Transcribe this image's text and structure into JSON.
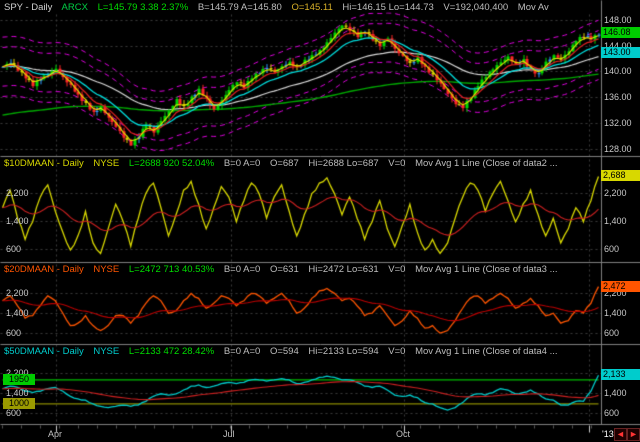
{
  "colors": {
    "background": "#000000",
    "grid": "#3a3a3a",
    "separator": "#808080",
    "axis_text": "#c8c8c8"
  },
  "panels": [
    {
      "id": "spy",
      "line_color": "#00d800",
      "header": {
        "symbol": "SPY - Daily",
        "exchange": "ARCX",
        "last": "L=145.79 3.38 2.37%",
        "bid_ask": "B=145.79 A=145.80",
        "open": "O=145.11",
        "hi_lo": "Hi=146.15 Lo=144.73",
        "volume": "V=192,040,400",
        "indicator": "Mov Av"
      },
      "right_axis_labels": [
        {
          "text": "148.00",
          "value": 148
        },
        {
          "text": "144.00",
          "value": 144
        },
        {
          "text": "140.00",
          "value": 140
        },
        {
          "text": "136.00",
          "value": 136
        },
        {
          "text": "132.00",
          "value": 132
        },
        {
          "text": "128.00",
          "value": 128
        }
      ],
      "axis_labels": [],
      "badges": [
        {
          "text": "146.08",
          "value": 146.08,
          "bg": "#00cc00",
          "fg": "#000000",
          "side": "right"
        },
        {
          "text": "143.00",
          "value": 143.0,
          "bg": "#00cccc",
          "fg": "#000000",
          "side": "right"
        }
      ]
    },
    {
      "id": "10dmaan",
      "line_color": "#d8d800",
      "header": {
        "symbol": "$10DMAAN - Daily",
        "exchange": "NYSE",
        "last": "L=2688 920 52.04%",
        "bid_ask": "B=0 A=0",
        "open": "O=687",
        "hi_lo": "Hi=2688 Lo=687",
        "volume": "V=0",
        "indicator": "Mov Avg 1 Line (Close of data2 ..."
      },
      "right_axis_labels": [
        {
          "text": "2,200",
          "value": 2200
        },
        {
          "text": "1,400",
          "value": 1400
        },
        {
          "text": "600",
          "value": 600
        }
      ],
      "axis_labels": [
        {
          "text": "2,200",
          "value": 2200
        },
        {
          "text": "1,400",
          "value": 1400
        },
        {
          "text": "600",
          "value": 600
        }
      ],
      "badges": [
        {
          "text": "2,688",
          "value": 2688,
          "bg": "#d8d800",
          "fg": "#000000",
          "side": "right"
        }
      ]
    },
    {
      "id": "20dmaan",
      "line_color": "#ff5500",
      "header": {
        "symbol": "$20DMAAN - Daily",
        "exchange": "NYSE",
        "last": "L=2472 713 40.53%",
        "bid_ask": "B=0 A=0",
        "open": "O=631",
        "hi_lo": "Hi=2472 Lo=631",
        "volume": "V=0",
        "indicator": "Mov Avg 1 Line (Close of data3 ..."
      },
      "right_axis_labels": [
        {
          "text": "2,200",
          "value": 2200
        },
        {
          "text": "1,400",
          "value": 1400
        },
        {
          "text": "600",
          "value": 600
        }
      ],
      "axis_labels": [
        {
          "text": "2,200",
          "value": 2200
        },
        {
          "text": "1,400",
          "value": 1400
        },
        {
          "text": "600",
          "value": 600
        }
      ],
      "badges": [
        {
          "text": "2,472",
          "value": 2472,
          "bg": "#ff5500",
          "fg": "#000000",
          "side": "right"
        }
      ]
    },
    {
      "id": "50dmaan",
      "line_color": "#00cccc",
      "header": {
        "symbol": "$50DMAAN - Daily",
        "exchange": "NYSE",
        "last": "L=2133 472 28.42%",
        "bid_ask": "B=0 A=0",
        "open": "O=594",
        "hi_lo": "Hi=2133 Lo=594",
        "volume": "V=0",
        "indicator": "Mov Avg 1 Line (Close of data4 ..."
      },
      "right_axis_labels": [
        {
          "text": "2,200",
          "value": 2200
        },
        {
          "text": "1,400",
          "value": 1400
        },
        {
          "text": "600",
          "value": 600
        }
      ],
      "axis_labels": [
        {
          "text": "2,200",
          "value": 2200
        },
        {
          "text": "1,400",
          "value": 1400
        },
        {
          "text": "600",
          "value": 600
        }
      ],
      "badges": [
        {
          "text": "2,133",
          "value": 2133,
          "bg": "#00cccc",
          "fg": "#000000",
          "side": "right"
        },
        {
          "text": "1950",
          "value": 1950,
          "bg": "#00cc00",
          "fg": "#000000",
          "side": "left"
        },
        {
          "text": "1000",
          "value": 1000,
          "bg": "#9a9a00",
          "fg": "#000000",
          "side": "left"
        }
      ]
    }
  ],
  "date_axis": {
    "labels": [
      "Apr",
      "Jul",
      "Oct",
      "'13"
    ],
    "fractions": [
      0.09,
      0.385,
      0.675,
      0.985
    ]
  },
  "scrollbar": {
    "left_arrow": "◄",
    "right_arrow": "►"
  },
  "chart_data": [
    {
      "type": "candlestick",
      "title": "SPY - Daily",
      "ylim": [
        127.2,
        148.6
      ],
      "y_ticks": [
        128,
        132,
        136,
        140,
        144,
        148
      ],
      "x_labels": [
        "Apr",
        "Jul",
        "Oct",
        "'13"
      ],
      "last": 145.79,
      "open": 145.11,
      "high": 146.15,
      "low": 144.73,
      "volume": "192,040,400",
      "close": [
        140.8,
        141.4,
        140.2,
        139.0,
        137.8,
        138.9,
        139.6,
        140.5,
        139.2,
        138.0,
        136.5,
        135.2,
        133.8,
        134.6,
        132.9,
        131.5,
        129.8,
        128.6,
        129.9,
        131.8,
        130.6,
        132.4,
        133.9,
        135.8,
        134.7,
        136.2,
        137.4,
        135.9,
        134.2,
        135.6,
        137.2,
        138.4,
        137.5,
        139.0,
        139.8,
        140.6,
        139.9,
        140.9,
        141.6,
        140.8,
        141.9,
        142.6,
        143.4,
        144.6,
        146.1,
        147.2,
        146.4,
        145.4,
        146.2,
        144.9,
        144.0,
        145.2,
        143.6,
        142.5,
        141.4,
        142.3,
        140.8,
        139.6,
        138.2,
        136.6,
        135.0,
        134.4,
        136.0,
        137.8,
        139.2,
        140.4,
        141.5,
        142.4,
        141.2,
        142.0,
        140.4,
        139.8,
        141.6,
        142.6,
        141.9,
        143.2,
        144.8,
        145.4,
        145.0,
        145.79
      ],
      "overlays": [
        {
          "name": "mov-avg-fast",
          "color": "#e6e600"
        },
        {
          "name": "mov-avg-medium",
          "color": "#e02020"
        },
        {
          "name": "mov-avg-20",
          "color": "#00dede"
        },
        {
          "name": "mov-avg-50",
          "color": "#d8d8d8"
        },
        {
          "name": "mov-avg-200",
          "color": "#00a800"
        },
        {
          "name": "envelope-bands",
          "color": "#e000e0",
          "style": "dashed"
        }
      ]
    },
    {
      "type": "line",
      "title": "$10DMAAN - Daily",
      "ylim": [
        300,
        2800
      ],
      "y_ticks": [
        600,
        1400,
        2200
      ],
      "line_color": "#d8d800",
      "ma_color": "#cc2020",
      "last": 2688,
      "values": [
        1800,
        2300,
        1500,
        900,
        1400,
        2100,
        2450,
        1700,
        1100,
        600,
        1000,
        1700,
        800,
        500,
        1200,
        1900,
        1400,
        700,
        1500,
        2200,
        2500,
        1800,
        1000,
        1600,
        2300,
        2550,
        1900,
        1200,
        1800,
        2400,
        2100,
        1400,
        2000,
        2500,
        2200,
        1500,
        2100,
        2450,
        1700,
        1000,
        1600,
        2200,
        2500,
        2650,
        2200,
        1600,
        2100,
        1500,
        900,
        1400,
        2000,
        1200,
        700,
        1300,
        1900,
        1100,
        600,
        900,
        500,
        800,
        1500,
        2100,
        2500,
        2300,
        1700,
        2200,
        2550,
        2000,
        1400,
        1900,
        2300,
        1600,
        1000,
        1500,
        800,
        1200,
        1800,
        1400,
        2000,
        2688
      ],
      "hlines": []
    },
    {
      "type": "line",
      "title": "$20DMAAN - Daily",
      "ylim": [
        300,
        2800
      ],
      "y_ticks": [
        600,
        1400,
        2200
      ],
      "line_color": "#ff5500",
      "ma_color": "#bb0000",
      "last": 2472,
      "values": [
        1900,
        2100,
        1700,
        1200,
        1300,
        1700,
        2100,
        1900,
        1400,
        900,
        1000,
        1300,
        900,
        700,
        900,
        1300,
        1300,
        1000,
        1300,
        1800,
        2100,
        1900,
        1400,
        1500,
        1900,
        2200,
        2000,
        1600,
        1800,
        2100,
        2000,
        1700,
        1900,
        2200,
        2100,
        1800,
        2000,
        2200,
        1900,
        1400,
        1600,
        2000,
        2300,
        2400,
        2200,
        1900,
        2000,
        1700,
        1300,
        1400,
        1700,
        1300,
        900,
        1100,
        1500,
        1200,
        800,
        900,
        600,
        700,
        1100,
        1600,
        2000,
        2100,
        1800,
        2000,
        2200,
        2000,
        1600,
        1800,
        2000,
        1700,
        1300,
        1400,
        1000,
        1100,
        1500,
        1400,
        1800,
        2472
      ],
      "hlines": []
    },
    {
      "type": "line",
      "title": "$50DMAAN - Daily",
      "ylim": [
        300,
        2800
      ],
      "y_ticks": [
        600,
        1400,
        2200
      ],
      "line_color": "#00cccc",
      "ma_color": "#cc2020",
      "last": 2133,
      "values": [
        1600,
        1700,
        1650,
        1500,
        1450,
        1500,
        1600,
        1650,
        1500,
        1300,
        1200,
        1150,
        1000,
        900,
        850,
        900,
        950,
        900,
        950,
        1100,
        1300,
        1400,
        1350,
        1400,
        1550,
        1700,
        1750,
        1650,
        1700,
        1800,
        1850,
        1800,
        1850,
        1950,
        1950,
        1900,
        1950,
        2000,
        1950,
        1800,
        1850,
        1950,
        2050,
        2100,
        2050,
        1950,
        1950,
        1850,
        1700,
        1650,
        1700,
        1550,
        1350,
        1300,
        1350,
        1250,
        1050,
        1000,
        850,
        750,
        850,
        1050,
        1300,
        1400,
        1350,
        1450,
        1600,
        1550,
        1400,
        1450,
        1550,
        1400,
        1200,
        1150,
        950,
        950,
        1100,
        1100,
        1500,
        2133
      ],
      "hlines": [
        {
          "value": 1950,
          "color": "#00bb00",
          "label": "1950"
        },
        {
          "value": 1000,
          "color": "#8a8a00",
          "label": "1000"
        }
      ]
    }
  ]
}
